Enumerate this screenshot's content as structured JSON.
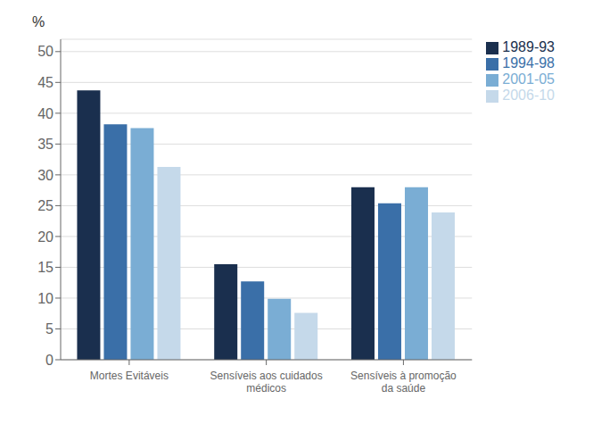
{
  "chart_data": {
    "type": "bar",
    "categories": [
      "Mortes Evitáveis",
      "Sensíveis aos cuidados\nmédicos",
      "Sensíveis à promoção\nda saúde"
    ],
    "series": [
      {
        "name": "1989-93",
        "color": "#1a2f4e",
        "values": [
          43.7,
          15.5,
          28.0
        ]
      },
      {
        "name": "1994-98",
        "color": "#3a6fa8",
        "values": [
          38.2,
          12.7,
          25.4
        ]
      },
      {
        "name": "2001-05",
        "color": "#7aadd4",
        "values": [
          37.6,
          9.9,
          28.0
        ]
      },
      {
        "name": "2006-10",
        "color": "#c5d9ea",
        "values": [
          31.3,
          7.6,
          23.9
        ]
      }
    ],
    "ylabel": "%",
    "ylim": [
      0,
      52
    ],
    "yticks": [
      0,
      5,
      10,
      15,
      20,
      25,
      30,
      35,
      40,
      45,
      50
    ],
    "grid": true,
    "legend": "upper right"
  }
}
